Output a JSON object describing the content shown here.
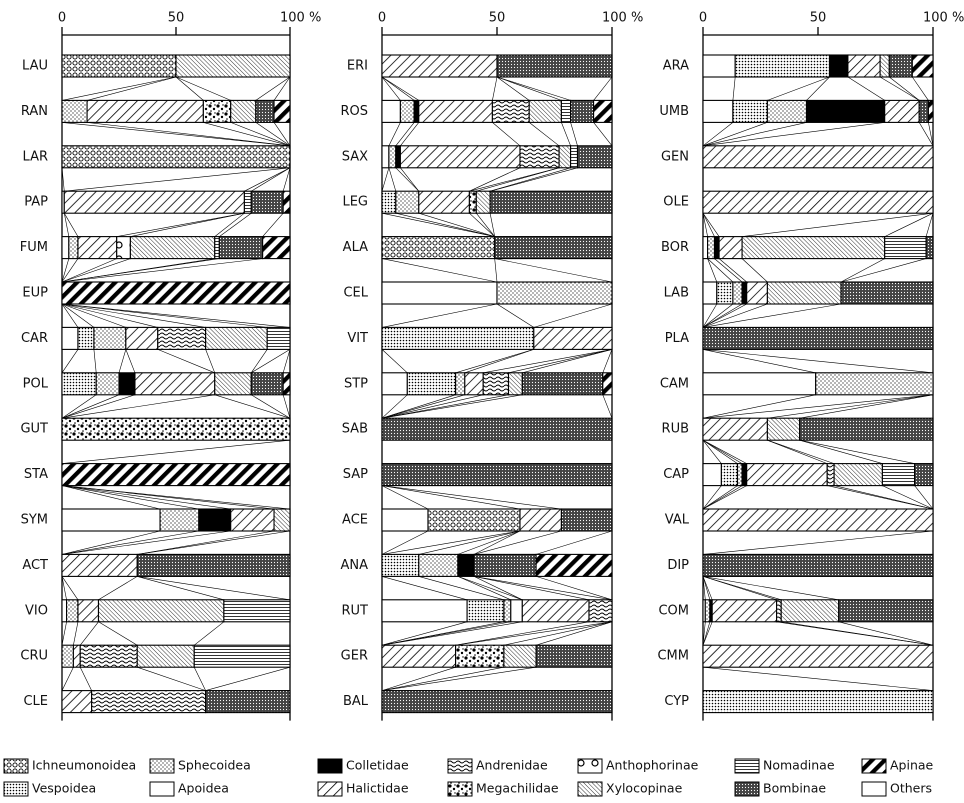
{
  "chart_data": {
    "type": "bar",
    "orientation": "horizontal",
    "stacked": true,
    "xlim": [
      0,
      100
    ],
    "xticks": [
      0,
      50,
      {
        "value": 100,
        "label": "100 %"
      }
    ],
    "categories": [
      "LAU",
      "RAN",
      "LAR",
      "PAP",
      "FUM",
      "EUP",
      "CAR",
      "POL",
      "GUT",
      "STA",
      "SYM",
      "ACT",
      "VIO",
      "CRU",
      "CLE",
      "ERI",
      "ROS",
      "SAX",
      "LEG",
      "ALA",
      "CEL",
      "VIT",
      "STP",
      "SAB",
      "SAP",
      "ACE",
      "ANA",
      "RUT",
      "GER",
      "BAL",
      "ARA",
      "UMB",
      "GEN",
      "OLE",
      "BOR",
      "LAB",
      "PLA",
      "CAM",
      "RUB",
      "CAP",
      "VAL",
      "DIP",
      "COM",
      "CMM",
      "CYP"
    ],
    "series": [
      {
        "name": "Others",
        "pattern": "white",
        "values": [
          0,
          0,
          0,
          1,
          3,
          0,
          7,
          0,
          0,
          0,
          43,
          0,
          2,
          0,
          0,
          0,
          8,
          3,
          0,
          0,
          50,
          0,
          11,
          0,
          0,
          20,
          0,
          37,
          0,
          0,
          14,
          13,
          0,
          0,
          2,
          6,
          0,
          49,
          0,
          8,
          0,
          0,
          1,
          0,
          0
        ]
      },
      {
        "name": "Ichneumonoidea",
        "pattern": "circles",
        "values": [
          50,
          0,
          100,
          0,
          0,
          0,
          0,
          0,
          0,
          0,
          0,
          0,
          0,
          0,
          0,
          0,
          0,
          0,
          0,
          49,
          0,
          0,
          0,
          0,
          0,
          40,
          0,
          0,
          0,
          0,
          0,
          0,
          0,
          0,
          0,
          0,
          0,
          0,
          0,
          0,
          0,
          0,
          0,
          0,
          0
        ]
      },
      {
        "name": "Vespoidea",
        "pattern": "dense-dots",
        "values": [
          0,
          0,
          0,
          0,
          0,
          0,
          7,
          15,
          0,
          0,
          0,
          0,
          0,
          0,
          0,
          0,
          0,
          0,
          6,
          0,
          0,
          66,
          21,
          0,
          0,
          0,
          16,
          16,
          0,
          0,
          41,
          15,
          0,
          0,
          0,
          7,
          0,
          0,
          0,
          7,
          0,
          0,
          0,
          0,
          100
        ]
      },
      {
        "name": "Sphecoidea",
        "pattern": "sparse-dots",
        "values": [
          0,
          11,
          0,
          0,
          4,
          0,
          14,
          10,
          0,
          0,
          17,
          0,
          5,
          5,
          0,
          0,
          6,
          3,
          10,
          0,
          50,
          0,
          4,
          0,
          0,
          0,
          17,
          3,
          0,
          0,
          0,
          17,
          0,
          0,
          3,
          4,
          0,
          51,
          0,
          2,
          0,
          0,
          2,
          0,
          0
        ]
      },
      {
        "name": "Apoidea",
        "pattern": "white-bar",
        "values": [
          0,
          0,
          0,
          0,
          0,
          0,
          0,
          0,
          0,
          0,
          0,
          0,
          0,
          0,
          0,
          0,
          0,
          0,
          0,
          0,
          0,
          0,
          0,
          0,
          0,
          0,
          0,
          5,
          0,
          0,
          0,
          0,
          0,
          0,
          0,
          0,
          0,
          0,
          0,
          0,
          0,
          0,
          0,
          0,
          0
        ]
      },
      {
        "name": "Colletidae",
        "pattern": "black",
        "values": [
          0,
          0,
          0,
          0,
          0,
          0,
          0,
          7,
          0,
          0,
          14,
          0,
          0,
          0,
          0,
          0,
          2,
          2,
          0,
          0,
          0,
          0,
          0,
          0,
          0,
          0,
          7,
          0,
          0,
          0,
          8,
          34,
          0,
          0,
          2,
          2,
          0,
          0,
          0,
          2,
          0,
          0,
          1,
          0,
          0
        ]
      },
      {
        "name": "Halictidae",
        "pattern": "hatch",
        "values": [
          0,
          51,
          0,
          79,
          17,
          0,
          14,
          35,
          0,
          0,
          19,
          33,
          9,
          3,
          13,
          50,
          32,
          52,
          22,
          0,
          0,
          34,
          8,
          0,
          0,
          18,
          0,
          29,
          32,
          0,
          14,
          15,
          100,
          100,
          10,
          9,
          0,
          0,
          28,
          35,
          100,
          0,
          28,
          100,
          0
        ]
      },
      {
        "name": "Andrenidae",
        "pattern": "waves",
        "values": [
          0,
          0,
          0,
          0,
          0,
          0,
          21,
          0,
          0,
          0,
          0,
          0,
          0,
          25,
          50,
          0,
          16,
          17,
          0,
          0,
          0,
          0,
          11,
          0,
          0,
          0,
          0,
          10,
          0,
          0,
          0,
          0,
          0,
          0,
          0,
          0,
          0,
          0,
          0,
          3,
          0,
          0,
          2,
          0,
          0
        ]
      },
      {
        "name": "Megachilidae",
        "pattern": "mottled",
        "values": [
          0,
          12,
          0,
          0,
          0,
          0,
          0,
          0,
          100,
          0,
          0,
          0,
          0,
          0,
          0,
          0,
          0,
          0,
          3,
          0,
          0,
          0,
          0,
          0,
          0,
          0,
          0,
          0,
          21,
          0,
          0,
          0,
          0,
          0,
          0,
          0,
          0,
          0,
          0,
          0,
          0,
          0,
          0,
          0,
          0
        ]
      },
      {
        "name": "Anthophorinae",
        "pattern": "ring",
        "values": [
          0,
          0,
          0,
          0,
          6,
          0,
          0,
          0,
          0,
          0,
          0,
          0,
          0,
          0,
          0,
          0,
          0,
          0,
          0,
          0,
          0,
          0,
          0,
          0,
          0,
          0,
          0,
          0,
          0,
          0,
          0,
          0,
          0,
          0,
          0,
          0,
          0,
          0,
          0,
          0,
          0,
          0,
          0,
          0,
          0
        ]
      },
      {
        "name": "Xylocopinae",
        "pattern": "fine-hatch",
        "values": [
          50,
          11,
          0,
          0,
          37,
          0,
          27,
          16,
          0,
          0,
          7,
          0,
          55,
          25,
          0,
          0,
          14,
          5,
          6,
          0,
          0,
          0,
          6,
          0,
          0,
          0,
          0,
          0,
          14,
          0,
          4,
          0,
          0,
          0,
          62,
          32,
          0,
          0,
          14,
          21,
          0,
          0,
          25,
          0,
          0
        ]
      },
      {
        "name": "Nomadinae",
        "pattern": "hlines",
        "values": [
          0,
          0,
          0,
          3,
          2,
          0,
          10,
          0,
          0,
          0,
          0,
          0,
          29,
          42,
          0,
          0,
          4,
          3,
          0,
          0,
          0,
          0,
          0,
          0,
          0,
          0,
          0,
          0,
          0,
          0,
          0,
          0,
          0,
          0,
          18,
          0,
          0,
          0,
          0,
          14,
          0,
          0,
          0,
          0,
          0
        ]
      },
      {
        "name": "Bombinae",
        "pattern": "crosshatch",
        "values": [
          0,
          8,
          0,
          14,
          19,
          0,
          0,
          14,
          0,
          0,
          0,
          67,
          0,
          0,
          37,
          50,
          10,
          15,
          53,
          51,
          0,
          0,
          35,
          100,
          100,
          22,
          27,
          0,
          33,
          100,
          10,
          4,
          0,
          0,
          3,
          40,
          100,
          0,
          58,
          8,
          0,
          100,
          41,
          0,
          0
        ]
      },
      {
        "name": "Apinae",
        "pattern": "thick-hatch",
        "values": [
          0,
          7,
          0,
          3,
          12,
          100,
          0,
          3,
          0,
          100,
          0,
          0,
          0,
          0,
          0,
          0,
          8,
          0,
          0,
          0,
          0,
          0,
          4,
          0,
          0,
          0,
          33,
          0,
          0,
          0,
          9,
          2,
          0,
          0,
          0,
          0,
          0,
          0,
          0,
          0,
          0,
          0,
          0,
          0,
          0
        ]
      }
    ]
  }
}
